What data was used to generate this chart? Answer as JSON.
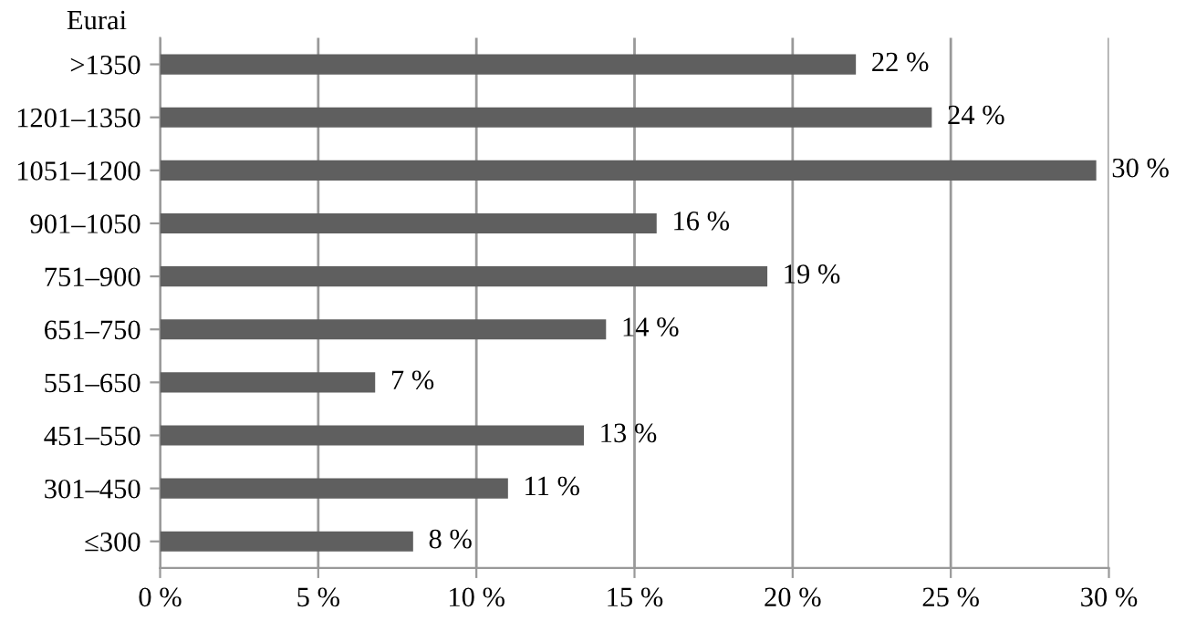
{
  "chart_data": {
    "type": "bar",
    "orientation": "horizontal",
    "ylabel": "Eurai",
    "categories": [
      ">1350",
      "1201–1350",
      "1051–1200",
      "901–1050",
      "751–900",
      "651–750",
      "551–650",
      "451–550",
      "301–450",
      "≤300"
    ],
    "values": [
      22,
      24.4,
      29.6,
      15.7,
      19.2,
      14.1,
      6.8,
      13.4,
      11,
      8
    ],
    "value_labels": [
      "22 %",
      "24 %",
      "30 %",
      "16 %",
      "19 %",
      "14 %",
      "7 %",
      "13 %",
      "11 %",
      "8 %"
    ],
    "color": "#5f5f5f",
    "xlim": [
      0,
      30
    ],
    "xticks": [
      {
        "value": 0,
        "label": "0 %"
      },
      {
        "value": 5,
        "label": "5 %"
      },
      {
        "value": 10,
        "label": "10 %"
      },
      {
        "value": 15,
        "label": "15 %"
      },
      {
        "value": 20,
        "label": "20 %"
      },
      {
        "value": 25,
        "label": "25 %"
      },
      {
        "value": 30,
        "label": "30 %"
      }
    ],
    "grid": "x"
  }
}
